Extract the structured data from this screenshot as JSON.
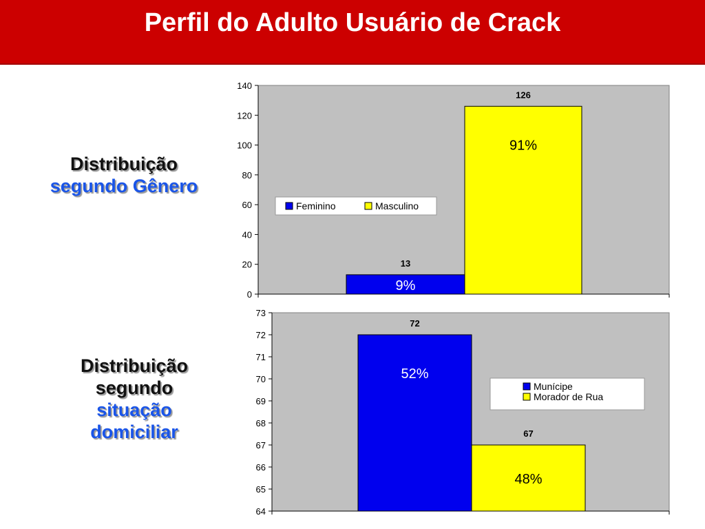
{
  "title": "Perfil do Adulto Usuário de Crack",
  "labels": {
    "gender": {
      "line1": "Distribuição",
      "line2": "segundo Gênero"
    },
    "domicile": {
      "line1": "Distribuição",
      "line2": "segundo",
      "line3": "situação",
      "line4": "domiciliar"
    }
  },
  "colors": {
    "header": "#cc0000",
    "series_blue": "#0000ee",
    "series_yellow": "#ffff00",
    "plot_bg": "#c0c0c0"
  },
  "chart_data": [
    {
      "type": "bar",
      "categories": [
        "Feminino",
        "Masculino"
      ],
      "values": [
        13,
        126
      ],
      "data_labels": [
        "13",
        "126"
      ],
      "percent_labels": [
        "9%",
        "91%"
      ],
      "colors": [
        "#0000ee",
        "#ffff00"
      ],
      "ylim": [
        0,
        140
      ],
      "yticks": [
        0,
        20,
        40,
        60,
        80,
        100,
        120,
        140
      ],
      "legend": "left-middle",
      "grid": false
    },
    {
      "type": "bar",
      "categories": [
        "Munícipe",
        "Morador de Rua"
      ],
      "values": [
        72,
        67
      ],
      "data_labels": [
        "72",
        "67"
      ],
      "percent_labels": [
        "52%",
        "48%"
      ],
      "colors": [
        "#0000ee",
        "#ffff00"
      ],
      "ylim": [
        64,
        73
      ],
      "yticks": [
        64,
        65,
        66,
        67,
        68,
        69,
        70,
        71,
        72,
        73
      ],
      "legend": "right-middle",
      "grid": false
    }
  ]
}
